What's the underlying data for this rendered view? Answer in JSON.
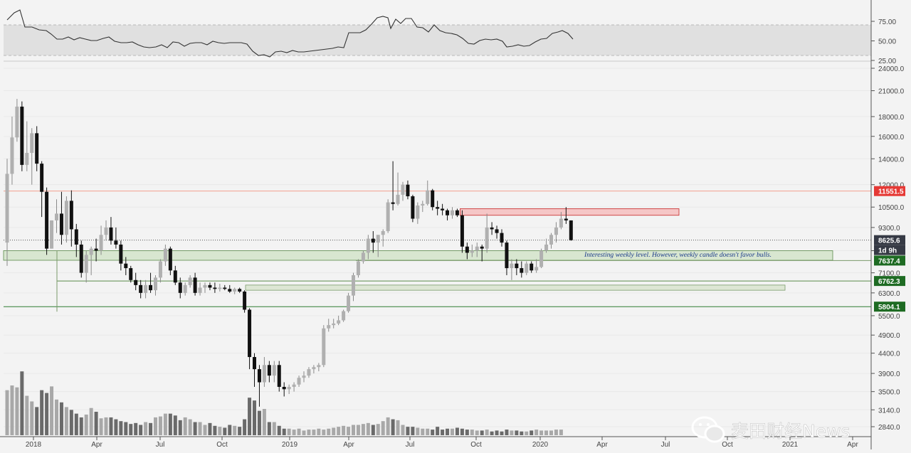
{
  "chart_data": {
    "type": "candlestick",
    "panels": [
      "rsi",
      "price",
      "volume"
    ],
    "x_axis": {
      "tick_labels": [
        "2018",
        "Apr",
        "Jul",
        "Oct",
        "2019",
        "Apr",
        "Jul",
        "Oct",
        "2020",
        "Apr",
        "Jul",
        "Oct",
        "2021",
        "Apr"
      ]
    },
    "y_axis_price": {
      "scale": "log",
      "tick_labels": [
        "24000.0",
        "21000.0",
        "18000.0",
        "16000.0",
        "14000.0",
        "12000.0",
        "10500.0",
        "9300.0",
        "8100.0",
        "7100.0",
        "6300.0",
        "5500.0",
        "4900.0",
        "4400.0",
        "3900.0",
        "3500.0",
        "3140.0",
        "2840.0"
      ],
      "ticks": [
        24000,
        21000,
        18000,
        16000,
        14000,
        12000,
        10500,
        9300,
        8100,
        7100,
        6300,
        5500,
        4900,
        4400,
        3900,
        3500,
        3140,
        2840
      ]
    },
    "y_axis_rsi": {
      "tick_labels": [
        "75.00",
        "50.00",
        "25.00"
      ],
      "ticks": [
        75,
        50,
        25
      ],
      "band": [
        30,
        70
      ]
    },
    "price_labels": [
      {
        "text": "11551.5",
        "value": 11551.5,
        "color": "#e53935"
      },
      {
        "text": "8625.6",
        "value": 8625.6,
        "color": "#363a45"
      },
      {
        "text": "1d 9h",
        "value": 8100,
        "color": "#363a45"
      },
      {
        "text": "7637.4",
        "value": 7637.4,
        "color": "#1e6b23"
      },
      {
        "text": "6762.3",
        "value": 6762.3,
        "color": "#1e6b23"
      },
      {
        "text": "5804.1",
        "value": 5804.1,
        "color": "#1e6b23"
      }
    ],
    "annotation": "Interesting weekly level. However, weekly candle doesn't favor bulls.",
    "weekly_ohlc": [
      [
        8500,
        14000,
        7400,
        12800
      ],
      [
        12800,
        18000,
        12000,
        15900
      ],
      [
        15900,
        20000,
        15500,
        19100
      ],
      [
        19100,
        19700,
        13000,
        13500
      ],
      [
        13500,
        17500,
        13000,
        14500
      ],
      [
        14500,
        16800,
        12000,
        16300
      ],
      [
        16300,
        17000,
        13000,
        13600
      ],
      [
        13600,
        13800,
        9900,
        11500
      ],
      [
        11500,
        11800,
        7900,
        8200
      ],
      [
        8200,
        9700,
        8200,
        9700
      ],
      [
        9700,
        11000,
        9000,
        10100
      ],
      [
        10100,
        11500,
        8400,
        8900
      ],
      [
        8900,
        11200,
        8500,
        10900
      ],
      [
        10900,
        11600,
        8300,
        9200
      ],
      [
        9200,
        9500,
        7800,
        8400
      ],
      [
        8400,
        8600,
        6900,
        7100
      ],
      [
        7100,
        8100,
        6700,
        7900
      ],
      [
        7900,
        8300,
        7000,
        8200
      ],
      [
        8200,
        8700,
        7600,
        8100
      ],
      [
        8100,
        9400,
        7900,
        8900
      ],
      [
        8900,
        9700,
        8600,
        9300
      ],
      [
        9300,
        9900,
        8400,
        8600
      ],
      [
        8600,
        9300,
        8200,
        8400
      ],
      [
        8400,
        8600,
        7200,
        7500
      ],
      [
        7500,
        7800,
        7000,
        7300
      ],
      [
        7300,
        7400,
        6700,
        6800
      ],
      [
        6800,
        7100,
        6400,
        6600
      ],
      [
        6600,
        6800,
        6100,
        6300
      ],
      [
        6300,
        6800,
        6100,
        6600
      ],
      [
        6600,
        7100,
        6300,
        6400
      ],
      [
        6400,
        7000,
        6200,
        6900
      ],
      [
        6900,
        7700,
        6700,
        7600
      ],
      [
        7600,
        8400,
        7400,
        8200
      ],
      [
        8200,
        8300,
        7000,
        7200
      ],
      [
        7200,
        7400,
        6600,
        6700
      ],
      [
        6700,
        6900,
        6100,
        6300
      ],
      [
        6300,
        6700,
        6200,
        6600
      ],
      [
        6600,
        7000,
        6500,
        6900
      ],
      [
        6900,
        7100,
        6200,
        6300
      ],
      [
        6300,
        6700,
        6200,
        6500
      ],
      [
        6500,
        6700,
        6300,
        6600
      ],
      [
        6600,
        6700,
        6400,
        6500
      ],
      [
        6500,
        6700,
        6300,
        6450
      ],
      [
        6450,
        6650,
        6350,
        6500
      ],
      [
        6500,
        6600,
        6400,
        6450
      ],
      [
        6450,
        6600,
        6300,
        6350
      ],
      [
        6350,
        6500,
        6250,
        6450
      ],
      [
        6450,
        6500,
        6300,
        6350
      ],
      [
        6350,
        6400,
        5600,
        5700
      ],
      [
        5700,
        5750,
        4000,
        4300
      ],
      [
        4300,
        4400,
        3600,
        4000
      ],
      [
        4000,
        4100,
        3200,
        3700
      ],
      [
        3700,
        4300,
        3600,
        4100
      ],
      [
        4100,
        4200,
        3700,
        3850
      ],
      [
        3850,
        4200,
        3700,
        4100
      ],
      [
        4100,
        4200,
        3500,
        3600
      ],
      [
        3600,
        3700,
        3400,
        3550
      ],
      [
        3550,
        3650,
        3450,
        3600
      ],
      [
        3600,
        3700,
        3500,
        3650
      ],
      [
        3650,
        3850,
        3600,
        3800
      ],
      [
        3800,
        3950,
        3700,
        3850
      ],
      [
        3850,
        4050,
        3800,
        4000
      ],
      [
        4000,
        4100,
        3900,
        4050
      ],
      [
        4050,
        4150,
        3950,
        4100
      ],
      [
        4100,
        5200,
        4050,
        5100
      ],
      [
        5100,
        5400,
        5000,
        5200
      ],
      [
        5200,
        5400,
        5100,
        5250
      ],
      [
        5250,
        5500,
        5200,
        5350
      ],
      [
        5350,
        5700,
        5300,
        5650
      ],
      [
        5650,
        6300,
        5600,
        6200
      ],
      [
        6200,
        7100,
        6000,
        7000
      ],
      [
        7000,
        7700,
        6900,
        7600
      ],
      [
        7600,
        8100,
        7500,
        8000
      ],
      [
        8000,
        8900,
        7700,
        8700
      ],
      [
        8700,
        9100,
        8000,
        8500
      ],
      [
        8500,
        8900,
        7800,
        8900
      ],
      [
        8900,
        9200,
        8300,
        9100
      ],
      [
        9100,
        11000,
        9000,
        10800
      ],
      [
        10800,
        13800,
        10300,
        10700
      ],
      [
        10700,
        12900,
        10600,
        11300
      ],
      [
        11300,
        12200,
        10900,
        12000
      ],
      [
        12000,
        12300,
        11000,
        11200
      ],
      [
        11200,
        11300,
        9600,
        9800
      ],
      [
        9800,
        10800,
        9500,
        10600
      ],
      [
        10600,
        10900,
        10200,
        10700
      ],
      [
        10700,
        12300,
        10600,
        11600
      ],
      [
        11600,
        11700,
        10300,
        10500
      ],
      [
        10500,
        10900,
        10000,
        10400
      ],
      [
        10400,
        10700,
        10000,
        10300
      ],
      [
        10300,
        10400,
        9700,
        10000
      ],
      [
        10000,
        10500,
        9800,
        10300
      ],
      [
        10300,
        10400,
        9900,
        10000
      ],
      [
        10000,
        10300,
        8000,
        8300
      ],
      [
        8300,
        8500,
        7700,
        8000
      ],
      [
        8000,
        8400,
        7800,
        8100
      ],
      [
        8100,
        8500,
        7800,
        8300
      ],
      [
        8300,
        8400,
        7600,
        8200
      ],
      [
        8200,
        10100,
        8000,
        9300
      ],
      [
        9300,
        9600,
        8900,
        9200
      ],
      [
        9200,
        9400,
        8700,
        9000
      ],
      [
        9000,
        9200,
        8300,
        8500
      ],
      [
        8500,
        8600,
        7000,
        7300
      ],
      [
        7300,
        7700,
        6800,
        7500
      ],
      [
        7500,
        7700,
        7000,
        7300
      ],
      [
        7300,
        7600,
        6900,
        7100
      ],
      [
        7100,
        7600,
        7000,
        7500
      ],
      [
        7500,
        7600,
        7100,
        7200
      ],
      [
        7200,
        7700,
        7100,
        7350
      ],
      [
        7350,
        8200,
        7300,
        8100
      ],
      [
        8100,
        8700,
        8000,
        8400
      ],
      [
        8400,
        9000,
        8200,
        8900
      ],
      [
        8900,
        9600,
        8500,
        9300
      ],
      [
        9300,
        10200,
        9200,
        9800
      ],
      [
        9800,
        10500,
        9500,
        9700
      ],
      [
        9700,
        9700,
        8600,
        8625.6
      ]
    ],
    "volume_pct": [
      48,
      53,
      51,
      68,
      42,
      36,
      30,
      48,
      45,
      52,
      38,
      35,
      30,
      27,
      23,
      19,
      22,
      29,
      25,
      18,
      19,
      19,
      17,
      15,
      14,
      12,
      13,
      11,
      14,
      13,
      19,
      20,
      23,
      23,
      21,
      16,
      19,
      17,
      14,
      14,
      11,
      13,
      10,
      9,
      8,
      11,
      10,
      9,
      17,
      40,
      37,
      26,
      28,
      14,
      14,
      10,
      7,
      7,
      6,
      7,
      5,
      6,
      6,
      7,
      6,
      7,
      8,
      9,
      10,
      9,
      11,
      11,
      12,
      13,
      11,
      12,
      15,
      19,
      17,
      16,
      11,
      9,
      9,
      8,
      7,
      7,
      6,
      9,
      6,
      7,
      7,
      8,
      7,
      6,
      6,
      5,
      5,
      6,
      4,
      5,
      4,
      6,
      5,
      5,
      4,
      4,
      5,
      6,
      5,
      5,
      5,
      6,
      6
    ]
  },
  "watermark": {
    "text": "麦田财经News"
  }
}
